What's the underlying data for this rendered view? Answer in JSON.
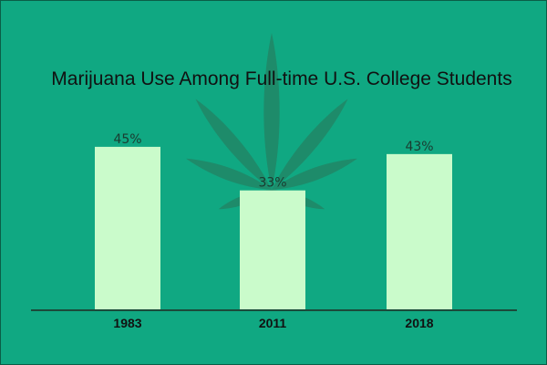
{
  "chart_data": {
    "type": "bar",
    "title": "Marijuana Use Among Full-time U.S. College Students",
    "categories": [
      "1983",
      "2011",
      "2018"
    ],
    "values": [
      45,
      33,
      43
    ],
    "value_labels": [
      "45%",
      "33%",
      "43%"
    ],
    "unit": "%",
    "xlabel": "",
    "ylabel": "",
    "ylim": [
      0,
      50
    ],
    "grid": false,
    "legend": "none",
    "colors": {
      "background": "#10a882",
      "bar": "#cafbcb",
      "axis": "#1b4a3a",
      "leaf": "#1e8b6a"
    },
    "decoration": "cannabis-leaf"
  }
}
